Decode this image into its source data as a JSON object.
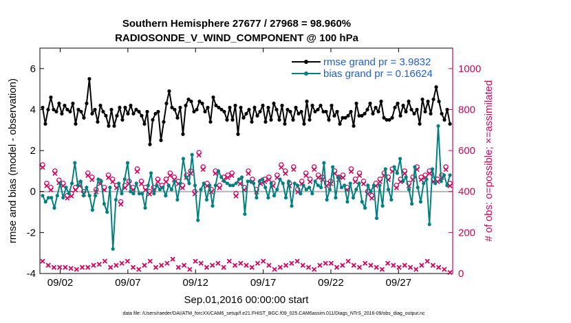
{
  "chart_data": {
    "type": "line",
    "title": "Southern Hemisphere 27677 / 27968 = 98.960%",
    "subtitle": "RADIOSONDE_V_WIND_COMPONENT @ 100 hPa",
    "xlabel": "Sep.01,2016 00:00:00 start",
    "ylabel": "rmse and bias (model - observation)",
    "ylabel_right": "# of obs: o=possible; ×=assimilated",
    "footnote": "data file: /Users/raeder/DAI/ATM_forcXX/CAM6_setup/f.e21.FHIST_BGC.f09_025.CAM6assim.011/Diags_NTrS_2016-09/obs_diag_output.nc",
    "xlim": [
      0.5,
      31
    ],
    "ylim": [
      -4,
      7
    ],
    "ylim_right": [
      0,
      1100
    ],
    "x_ticks": [
      2,
      7,
      12,
      17,
      22,
      27
    ],
    "x_tick_labels": [
      "09/02",
      "09/07",
      "09/12",
      "09/17",
      "09/22",
      "09/27"
    ],
    "y_ticks": [
      -4,
      -2,
      0,
      2,
      4,
      6
    ],
    "y_tick_labels": [
      "-4",
      "-2",
      "0",
      "2",
      "4",
      "6"
    ],
    "y_ticks_right": [
      0,
      200,
      400,
      600,
      800,
      1000
    ],
    "y_tick_labels_right": [
      "0",
      "200",
      "400",
      "600",
      "800",
      "1000"
    ],
    "legend_location": "top-right",
    "series": [
      {
        "name": "rmse grand pr = 3.9832",
        "color": "#000000",
        "axis": "left",
        "values": [
          4.1,
          3.3,
          4.0,
          4.6,
          4.0,
          3.9,
          4.3,
          3.8,
          4.2,
          4.0,
          3.9,
          4.3,
          3.3,
          4.0,
          3.9,
          3.6,
          4.3,
          5.5,
          3.8,
          4.0,
          3.4,
          4.2,
          3.9,
          3.7,
          3.2,
          4.0,
          3.2,
          3.7,
          4.1,
          3.5,
          4.1,
          3.8,
          4.2,
          3.8,
          4.0,
          3.9,
          3.7,
          3.3,
          3.9,
          2.3,
          3.5,
          3.8,
          3.9,
          2.5,
          3.4,
          4.3,
          4.9,
          4.1,
          4.0,
          3.6,
          4.1,
          2.8,
          4.2,
          4.5,
          4.4,
          3.9,
          4.0,
          4.4,
          4.3,
          3.9,
          4.1,
          3.4,
          4.6,
          4.2,
          4.1,
          4.0,
          3.9,
          3.5,
          4.1,
          3.5,
          4.2,
          2.8,
          4.1,
          3.6,
          3.8,
          4.0,
          3.4,
          4.1,
          3.7,
          3.9,
          4.2,
          3.4,
          4.1,
          3.5,
          4.3,
          4.0,
          3.5,
          4.2,
          3.3,
          4.0,
          3.9,
          3.5,
          4.1,
          3.8,
          3.9,
          3.3,
          4.4,
          3.5,
          4.2,
          3.9,
          4.0,
          4.2,
          3.9,
          3.9,
          3.5,
          4.2,
          3.7,
          3.9,
          3.3,
          3.6,
          3.6,
          3.7,
          3.9,
          3.2,
          4.3,
          3.7,
          3.7,
          3.8,
          4.0,
          4.3,
          3.8,
          4.1,
          3.9,
          4.4,
          3.6,
          3.5,
          3.5,
          3.6,
          4.1,
          4.3,
          3.7,
          4.2,
          3.9,
          4.4,
          4.0,
          3.8,
          4.0,
          3.3,
          4.5,
          3.9,
          4.4,
          3.8,
          4.5,
          5.1,
          4.4,
          3.8,
          3.5,
          4.0,
          3.3
        ]
      },
      {
        "name": "bias grand pr = 0.16624",
        "color": "#008080",
        "axis": "left",
        "values": [
          -0.2,
          -0.5,
          -0.3,
          -0.3,
          -0.8,
          -0.2,
          0.4,
          -0.3,
          0.2,
          -0.1,
          0.4,
          1.4,
          0.3,
          0.5,
          -0.2,
          0.2,
          -0.2,
          -0.9,
          -0.2,
          0.6,
          0.5,
          -0.6,
          -1.0,
          0.2,
          -2.8,
          -0.4,
          0.4,
          -0.1,
          0.6,
          1.4,
          0.0,
          -0.1,
          0.4,
          -0.1,
          -0.1,
          -0.8,
          0.3,
          0.9,
          -0.1,
          0.3,
          0.1,
          0.2,
          -0.2,
          0.3,
          0.1,
          0.5,
          -0.4,
          0.4,
          1.6,
          0.7,
          0.4,
          1.8,
          0.3,
          -1.4,
          0.1,
          0.4,
          -0.4,
          0.3,
          -0.7,
          0.3,
          1.0,
          0.7,
          0.5,
          0.4,
          0.3,
          0.3,
          0.4,
          0.6,
          0.7,
          -1.1,
          0.5,
          0.5,
          0.4,
          -0.3,
          0.5,
          0.6,
          0.2,
          -0.3,
          0.4,
          -0.2,
          0.1,
          0.6,
          0.4,
          -0.3,
          0.5,
          -0.7,
          0.4,
          0.3,
          -0.1,
          0.3,
          0.1,
          0.2,
          -0.1,
          0.5,
          0.3,
          0.2,
          1.4,
          -0.4,
          0.1,
          1.2,
          -0.3,
          0.7,
          0.2,
          0.3,
          -0.5,
          0.4,
          -0.3,
          0.1,
          0.4,
          -0.5,
          -0.8,
          0.3,
          0.0,
          0.3,
          -1.3,
          0.3,
          -0.7,
          1.1,
          0.1,
          -0.4,
          1.2,
          0.9,
          1.6,
          0.5,
          0.7,
          0.1,
          -0.6,
          1.2,
          0.2,
          -0.5,
          0.4,
          0.6,
          -1.6,
          1.1,
          0.4,
          3.2,
          0.5,
          0.8,
          0.3,
          0.8
        ]
      },
      {
        "name": "obs possible",
        "color": "#d6005a",
        "axis": "right",
        "marker": "o",
        "values": [
          530,
          440,
          420,
          500,
          455,
          440,
          380,
          390,
          420,
          440,
          400,
          490,
          470,
          410,
          450,
          420,
          480,
          460,
          430,
          350,
          430,
          450,
          420,
          510,
          450,
          420,
          400,
          420,
          460,
          430,
          460,
          490,
          470,
          450,
          430,
          480,
          500,
          400,
          590,
          520,
          440,
          410,
          500,
          430,
          470,
          480,
          490,
          390,
          450,
          420,
          500,
          460,
          410,
          450,
          460,
          470,
          440,
          480,
          530,
          500,
          440,
          520,
          410,
          450,
          490,
          460,
          520,
          480,
          470,
          440,
          450,
          500,
          470,
          480,
          420,
          510,
          460,
          490,
          450,
          400,
          380,
          440,
          460,
          490,
          470,
          510,
          430,
          460,
          500,
          440,
          470,
          520,
          470,
          480,
          500,
          460,
          460,
          480,
          520,
          440
        ]
      },
      {
        "name": "obs assimilated",
        "color": "#d6005a",
        "axis": "right",
        "marker": "x",
        "values": [
          60,
          40,
          30,
          30,
          30,
          25,
          20,
          30,
          30,
          40,
          45,
          60,
          30,
          40,
          50,
          60,
          30,
          20,
          40,
          60,
          30,
          40,
          50,
          70,
          30,
          40,
          20,
          60,
          50,
          30,
          40,
          50,
          30,
          60,
          40,
          50,
          40,
          30,
          50,
          60,
          40,
          20,
          30,
          40,
          50,
          60,
          40,
          30,
          20,
          40,
          50,
          50,
          30,
          40,
          60,
          40,
          30,
          50,
          40,
          30,
          20,
          50,
          40,
          30,
          40,
          30,
          20,
          40,
          60,
          40,
          30,
          20,
          5
        ]
      }
    ]
  },
  "colors": {
    "axis_left": "#000000",
    "axis_right": "#d6005a",
    "legend_text": "#1f5fd6",
    "zero_line": "#b3b3b3"
  }
}
